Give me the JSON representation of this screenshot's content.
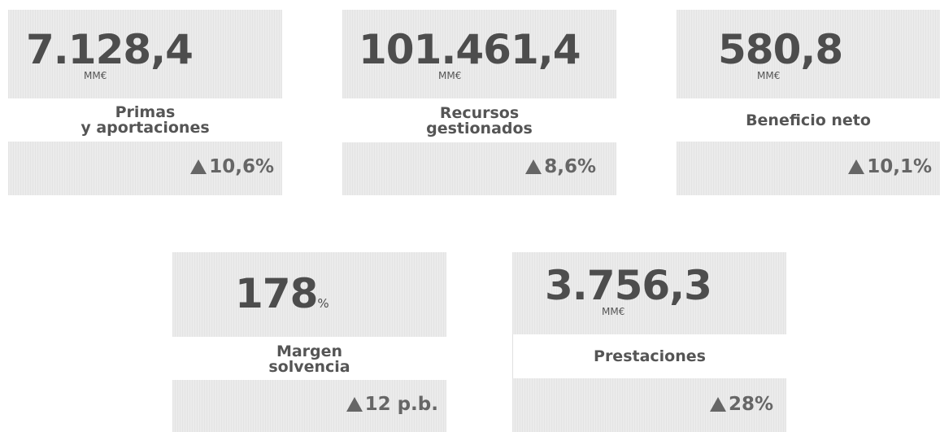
{
  "cards": [
    {
      "value": "7.128,4",
      "unit": "MM€",
      "label": [
        "Primas",
        "y aportaciones"
      ],
      "change": "10,6%"
    },
    {
      "value": "101.461,4",
      "unit": "MM€",
      "label": [
        "Recursos",
        "gestionados"
      ],
      "change": "8,6%"
    },
    {
      "value": "580,8",
      "unit": "MM€",
      "label": [
        "Beneficio neto"
      ],
      "change": "10,1%"
    },
    {
      "value": "178",
      "unit": "%",
      "label": [
        "Margen",
        "solvencia"
      ],
      "change": "12 p.b."
    },
    {
      "value": "3.756,3",
      "unit": "MM€",
      "label": [
        "Prestaciones"
      ],
      "change": "28%"
    }
  ]
}
